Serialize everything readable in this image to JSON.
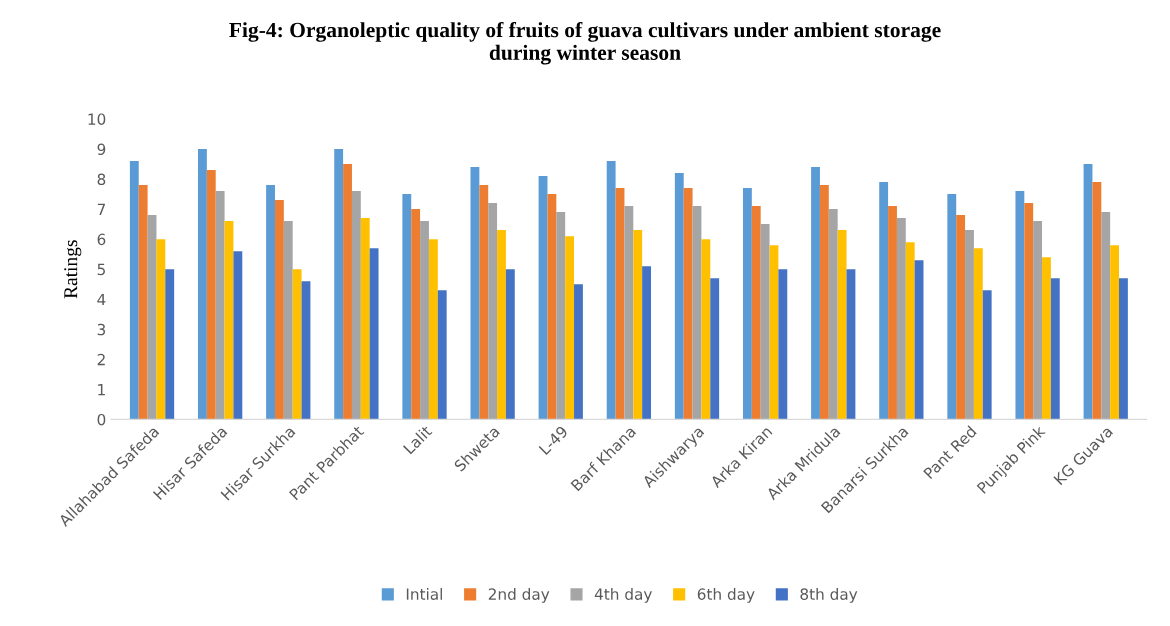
{
  "chart_data": {
    "type": "bar",
    "title": "Fig-4: Organoleptic quality of fruits of guava cultivars under ambient storage\nduring winter season",
    "ylabel": "Ratings",
    "categories": [
      "Allahabad Safeda",
      "Hisar Safeda",
      "Hisar Surkha",
      "Pant Parbhat",
      "Lalit",
      "Shweta",
      "L-49",
      "Barf Khana",
      "Aishwarya",
      "Arka Kiran",
      "Arka Mridula",
      "Banarsi Surkha",
      "Pant Red",
      "Punjab Pink",
      "KG Guava"
    ],
    "series": [
      {
        "name": "Intial",
        "color": "#5b9bd5",
        "values": [
          8.6,
          9.0,
          7.8,
          9.0,
          7.5,
          8.4,
          8.1,
          8.6,
          8.2,
          7.7,
          8.4,
          7.9,
          7.5,
          7.6,
          8.5
        ]
      },
      {
        "name": "2nd day",
        "color": "#ed7d31",
        "values": [
          7.8,
          8.3,
          7.3,
          8.5,
          7.0,
          7.8,
          7.5,
          7.7,
          7.7,
          7.1,
          7.8,
          7.1,
          6.8,
          7.2,
          7.9
        ]
      },
      {
        "name": "4th day",
        "color": "#a5a5a5",
        "values": [
          6.8,
          7.6,
          6.6,
          7.6,
          6.6,
          7.2,
          6.9,
          7.1,
          7.1,
          6.5,
          7.0,
          6.7,
          6.3,
          6.6,
          6.9
        ]
      },
      {
        "name": "6th day",
        "color": "#ffc000",
        "values": [
          6.0,
          6.6,
          5.0,
          6.7,
          6.0,
          6.3,
          6.1,
          6.3,
          6.0,
          5.8,
          6.3,
          5.9,
          5.7,
          5.4,
          5.8
        ]
      },
      {
        "name": "8th day",
        "color": "#4472c4",
        "values": [
          5.0,
          5.6,
          4.6,
          5.7,
          4.3,
          5.0,
          4.5,
          5.1,
          4.7,
          5.0,
          5.0,
          5.3,
          4.3,
          4.7,
          4.7
        ]
      }
    ],
    "ylim": [
      0,
      10
    ],
    "yticks": [
      0,
      1,
      2,
      3,
      4,
      5,
      6,
      7,
      8,
      9,
      10
    ],
    "grid": false,
    "legend": "bottom"
  }
}
